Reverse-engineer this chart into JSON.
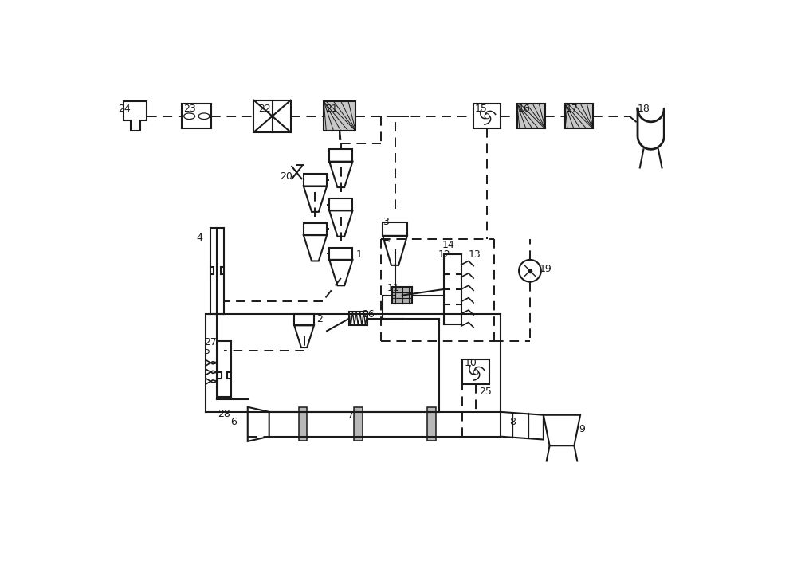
{
  "background_color": "#ffffff",
  "line_color": "#1a1a1a",
  "figsize": [
    10.0,
    7.14
  ],
  "dpi": 100
}
